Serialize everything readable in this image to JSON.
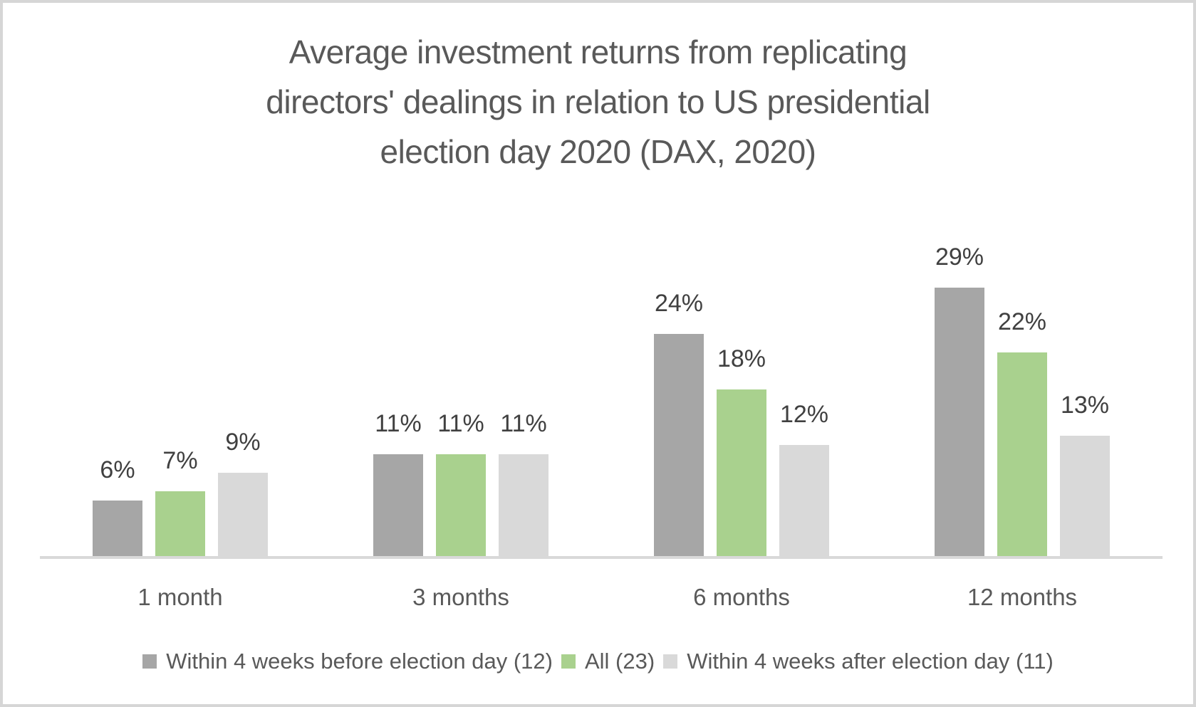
{
  "chart_data": {
    "type": "bar",
    "title": "Average investment returns from replicating directors' dealings in relation to US presidential election day 2020 (DAX, 2020)",
    "title_lines": [
      "Average investment returns from replicating",
      "directors' dealings in relation to US presidential",
      "election day 2020 (DAX, 2020)"
    ],
    "categories": [
      "1 month",
      "3 months",
      "6 months",
      "12 months"
    ],
    "series": [
      {
        "name": "Within 4 weeks before election day (12)",
        "color": "#a6a6a6",
        "values": [
          6,
          11,
          24,
          29
        ]
      },
      {
        "name": "All (23)",
        "color": "#a9d18e",
        "values": [
          7,
          11,
          18,
          22
        ]
      },
      {
        "name": "Within 4 weeks after election day (11)",
        "color": "#d9d9d9",
        "values": [
          9,
          11,
          12,
          13
        ]
      }
    ],
    "value_suffix": "%",
    "data_labels": true,
    "xlabel": "",
    "ylabel": "",
    "ylim": [
      0,
      33
    ],
    "grid": false,
    "legend_position": "bottom"
  },
  "colors": {
    "background": "#ffffff",
    "frame_border": "#d6d6d6",
    "title_text": "#595959",
    "data_label_text": "#404040",
    "category_text": "#595959",
    "legend_text": "#595959",
    "axis_line": "#d9d9d9"
  }
}
